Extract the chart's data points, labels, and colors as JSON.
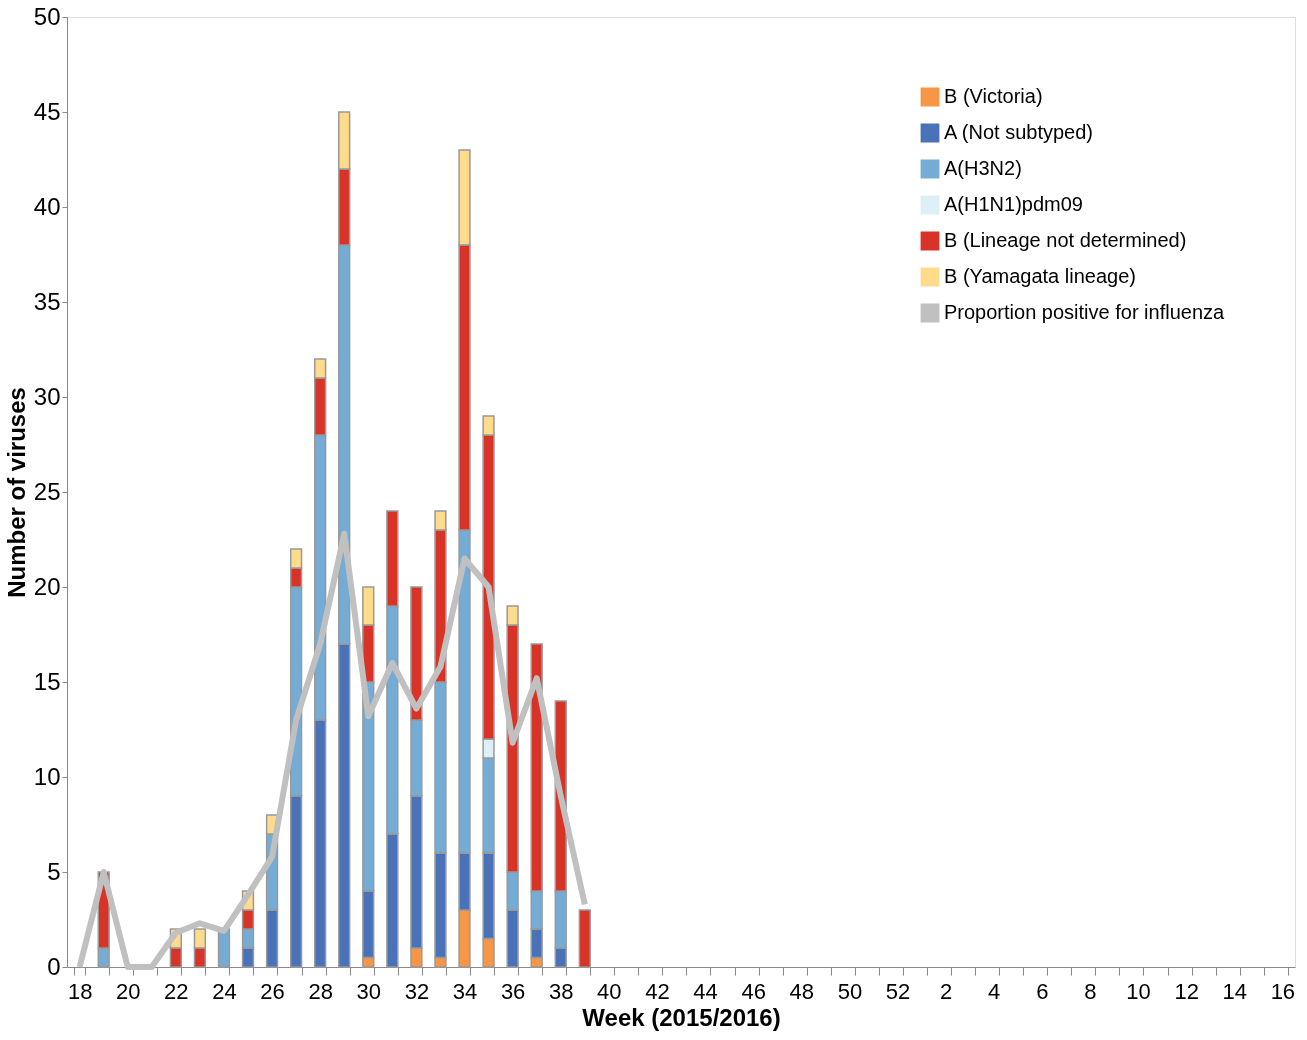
{
  "chart_data": {
    "type": "bar",
    "stacked": true,
    "xlabel": "Week (2015/2016)",
    "ylabel": "Number of viruses",
    "categories": [
      "18",
      null,
      "20",
      null,
      "22",
      null,
      "24",
      null,
      "26",
      null,
      "28",
      null,
      "30",
      null,
      "32",
      null,
      "34",
      null,
      "36",
      null,
      "38",
      null,
      "40",
      null,
      "42",
      null,
      "44",
      null,
      "46",
      null,
      "48",
      null,
      "50",
      null,
      "52",
      null,
      "2",
      null,
      "4",
      null,
      "6",
      null,
      "8",
      null,
      "10",
      null,
      "12",
      null,
      "14",
      null,
      "16"
    ],
    "ylim": [
      0,
      50
    ],
    "yticks": [
      0,
      5,
      10,
      15,
      20,
      25,
      30,
      35,
      40,
      45,
      50
    ],
    "grid": false,
    "legend": "top right",
    "series": [
      {
        "name": "B (Victoria)",
        "color": "#f79646",
        "values": [
          0,
          0,
          0,
          0,
          0,
          0,
          0,
          0,
          0,
          0,
          0,
          0,
          0.5,
          0,
          1,
          0.5,
          3,
          1.5,
          0,
          0.5,
          0,
          0,
          null,
          null,
          null,
          null,
          null,
          null,
          null,
          null,
          null,
          null,
          null,
          null,
          null,
          null,
          null,
          null,
          null,
          null,
          null,
          null,
          null,
          null,
          null,
          null,
          null,
          null,
          null,
          null,
          null
        ]
      },
      {
        "name": "A (Not subtyped)",
        "color": "#4a72b8",
        "values": [
          0,
          0,
          0,
          0,
          0,
          0,
          0,
          1,
          3,
          9,
          13,
          17,
          3.5,
          7,
          8,
          5.5,
          3,
          4.5,
          3,
          1.5,
          1,
          0,
          null,
          null,
          null,
          null,
          null,
          null,
          null,
          null,
          null,
          null,
          null,
          null,
          null,
          null,
          null,
          null,
          null,
          null,
          null,
          null,
          null,
          null,
          null,
          null,
          null,
          null,
          null,
          null,
          null
        ]
      },
      {
        "name": "A(H3N2)",
        "color": "#75acd5",
        "values": [
          0,
          1,
          0,
          0,
          0,
          0,
          2,
          1,
          4,
          11,
          15,
          21,
          11,
          12,
          4,
          9,
          17,
          5,
          2,
          2,
          3,
          0,
          null,
          null,
          null,
          null,
          null,
          null,
          null,
          null,
          null,
          null,
          null,
          null,
          null,
          null,
          null,
          null,
          null,
          null,
          null,
          null,
          null,
          null,
          null,
          null,
          null,
          null,
          null,
          null,
          null
        ]
      },
      {
        "name": "A(H1N1)pdm09",
        "color": "#ddf0f8",
        "values": [
          0,
          0,
          0,
          0,
          0,
          0,
          0,
          0,
          0,
          0,
          0,
          0,
          0,
          0,
          0,
          0,
          0,
          1,
          0,
          0,
          0,
          0,
          null,
          null,
          null,
          null,
          null,
          null,
          null,
          null,
          null,
          null,
          null,
          null,
          null,
          null,
          null,
          null,
          null,
          null,
          null,
          null,
          null,
          null,
          null,
          null,
          null,
          null,
          null,
          null,
          null
        ]
      },
      {
        "name": "B (Lineage not determined)",
        "color": "#d93327",
        "values": [
          0,
          4,
          0,
          0,
          1,
          1,
          0,
          1,
          0,
          1,
          3,
          4,
          3,
          5,
          7,
          8,
          15,
          16,
          13,
          13,
          10,
          3,
          null,
          null,
          null,
          null,
          null,
          null,
          null,
          null,
          null,
          null,
          null,
          null,
          null,
          null,
          null,
          null,
          null,
          null,
          null,
          null,
          null,
          null,
          null,
          null,
          null,
          null,
          null,
          null,
          null
        ]
      },
      {
        "name": "B (Yamagata lineage)",
        "color": "#fedc8c",
        "values": [
          0,
          0,
          0,
          0,
          1,
          1,
          0,
          1,
          1,
          1,
          1,
          3,
          2,
          0,
          0,
          1,
          5,
          1,
          1,
          0,
          0,
          0,
          null,
          null,
          null,
          null,
          null,
          null,
          null,
          null,
          null,
          null,
          null,
          null,
          null,
          null,
          null,
          null,
          null,
          null,
          null,
          null,
          null,
          null,
          null,
          null,
          null,
          null,
          null,
          null,
          null
        ]
      },
      {
        "name": "Proportion positive for influenza",
        "type": "line",
        "color": "#c0c0c0",
        "values": [
          0,
          5,
          0,
          0,
          1.8,
          2.3,
          1.9,
          3.8,
          5.8,
          13,
          17,
          22.8,
          13.2,
          16,
          13.6,
          15.8,
          21.5,
          20,
          11.8,
          15.2,
          9,
          3.3,
          null,
          null,
          null,
          null,
          null,
          null,
          null,
          null,
          null,
          null,
          null,
          null,
          null,
          null,
          null,
          null,
          null,
          null,
          null,
          null,
          null,
          null,
          null,
          null,
          null,
          null,
          null,
          null,
          null
        ]
      }
    ]
  }
}
